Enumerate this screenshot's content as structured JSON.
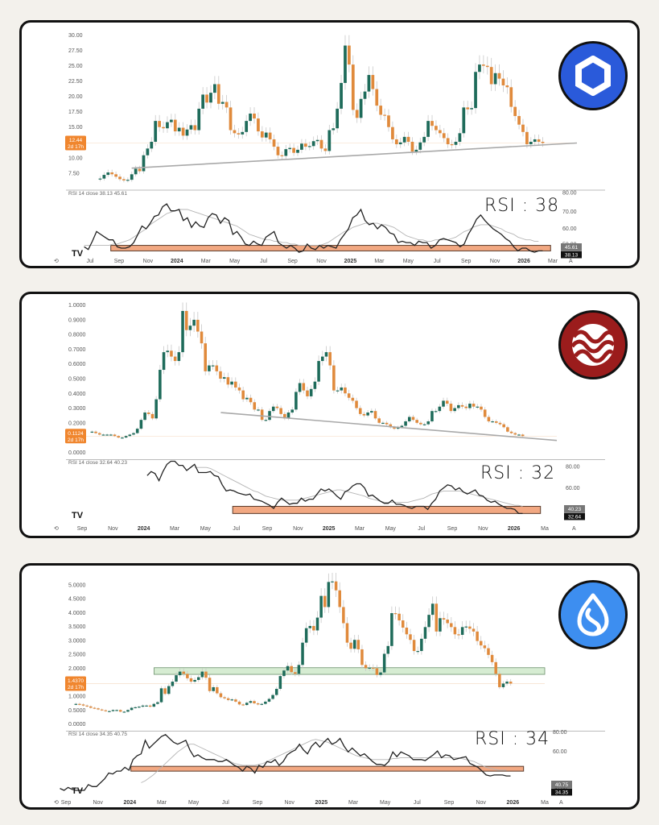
{
  "colors": {
    "background": "#f3f1ec",
    "panel": "#ffffff",
    "up_candle": "#1e6b5a",
    "down_candle": "#e08a3c",
    "trendline": "#a9a9a9",
    "rsi_line": "#222222",
    "rsi_ma_line": "#b5b5b5",
    "oversold_zone": "#f2a882",
    "support_zone": "#d6ecd2",
    "price_badge": "#f0862e"
  },
  "chart_data": [
    {
      "type": "candlestick",
      "asset_icon": "chainlink-hexagon-icon",
      "asset_icon_color": "#2a5ada",
      "title": "",
      "yticks": [
        "30.00",
        "27.50",
        "25.00",
        "22.50",
        "20.00",
        "17.50",
        "15.00",
        "10.00",
        "7.50"
      ],
      "ylim": [
        5.5,
        31
      ],
      "current_price_badge": {
        "price": "12.44",
        "countdown": "2d 17h"
      },
      "xticks": [
        "Jul",
        "Sep",
        "Nov",
        "2024",
        "Mar",
        "May",
        "Jul",
        "Sep",
        "Nov",
        "2025",
        "Mar",
        "May",
        "Jul",
        "Sep",
        "Nov",
        "2026",
        "Mar"
      ],
      "closes_approx": [
        6.6,
        7.2,
        7.6,
        7.3,
        6.9,
        6.5,
        6.3,
        6.4,
        7.3,
        8.2,
        7.8,
        10.4,
        11.5,
        12.6,
        16.0,
        15.0,
        14.8,
        15.8,
        16.2,
        14.3,
        14.9,
        13.6,
        14.6,
        15.3,
        14.5,
        18.0,
        20.3,
        19.0,
        20.6,
        22.0,
        18.8,
        19.1,
        18.2,
        14.5,
        14.0,
        13.8,
        14.2,
        16.0,
        17.2,
        16.4,
        14.3,
        13.3,
        14.1,
        13.0,
        11.8,
        10.4,
        10.3,
        11.4,
        11.6,
        10.8,
        11.3,
        12.3,
        11.8,
        11.9,
        12.7,
        12.9,
        11.5,
        11.1,
        14.5,
        14.8,
        18.0,
        22.2,
        28.3,
        25.2,
        17.8,
        16.5,
        19.6,
        20.8,
        23.5,
        21.2,
        18.5,
        17.0,
        16.9,
        15.0,
        13.0,
        12.2,
        12.5,
        13.4,
        12.6,
        11.0,
        11.3,
        12.5,
        13.4,
        16.0,
        15.2,
        14.5,
        14.0,
        13.2,
        12.2,
        12.1,
        12.6,
        14.0,
        18.2,
        17.9,
        18.1,
        24.0,
        25.2,
        25.0,
        24.8,
        22.0,
        23.8,
        22.9,
        21.8,
        21.5,
        18.3,
        16.8,
        15.4,
        14.2,
        12.2,
        12.6,
        13.0,
        12.6,
        12.4
      ],
      "trendline": {
        "from": [
          0.07,
          8.3
        ],
        "to": [
          1.0,
          12.4
        ]
      },
      "rsi": {
        "legend": {
          "label": "RSI 14 close",
          "value": "38.13",
          "ma": "45.61"
        },
        "yticks": [
          "80.00",
          "70.00",
          "60.00",
          "50.00"
        ],
        "ylim": [
          33,
          82
        ],
        "current_badges": {
          "ma": "45.61",
          "rsi": "38.13"
        },
        "values": [
          41,
          39,
          45,
          52,
          50,
          48,
          46,
          46,
          41,
          40,
          40,
          41,
          44,
          50,
          56,
          54,
          58,
          63,
          64,
          70,
          72,
          67,
          67,
          68,
          60,
          62,
          55,
          59,
          56,
          55,
          62,
          65,
          64,
          58,
          62,
          60,
          50,
          52,
          48,
          43,
          42,
          45,
          43,
          42,
          48,
          50,
          52,
          44,
          42,
          40,
          42,
          40,
          37,
          38,
          43,
          40,
          39,
          42,
          40,
          42,
          41,
          40,
          46,
          50,
          54,
          62,
          64,
          68,
          60,
          57,
          58,
          54,
          57,
          55,
          51,
          50,
          44,
          45,
          44,
          44,
          42,
          45,
          44,
          44,
          40,
          42,
          46,
          47,
          46,
          45,
          44,
          41,
          43,
          50,
          55,
          61,
          64,
          60,
          57,
          54,
          52,
          50,
          47,
          45,
          41,
          38,
          40,
          40,
          38,
          37,
          38,
          38
        ],
        "ma_values": [
          42,
          42,
          42,
          42,
          42,
          42,
          42,
          43,
          43,
          44,
          45,
          46,
          48,
          50,
          52,
          54,
          57,
          59,
          61,
          63,
          65,
          66,
          67,
          68,
          68,
          68,
          67,
          66,
          65,
          64,
          63,
          62,
          61,
          60,
          59,
          58,
          57,
          56,
          54,
          52,
          50,
          49,
          48,
          47,
          46,
          46,
          45,
          45,
          44,
          44,
          43,
          43,
          42,
          42,
          42,
          42,
          42,
          42,
          43,
          44,
          46,
          48,
          50,
          52,
          53,
          55,
          56,
          57,
          58,
          58,
          58,
          58,
          57,
          57,
          56,
          55,
          53,
          51,
          49,
          48,
          47,
          46,
          46,
          45,
          45,
          46,
          46,
          46,
          46,
          47,
          48,
          50,
          52,
          53,
          55,
          56,
          57,
          57,
          57,
          56,
          55,
          54,
          52,
          51,
          50,
          48,
          47,
          46,
          46,
          45,
          45
        ],
        "oversold_zone": {
          "from_x": 0.06,
          "to_x": 0.945,
          "y_top": 42,
          "y_bottom": 38
        },
        "annotation": "RSI : 38"
      }
    },
    {
      "type": "candlestick",
      "asset_icon": "sei-waves-icon",
      "asset_icon_color": "#9b1c1c",
      "title": "",
      "yticks": [
        "1.0000",
        "0.9000",
        "0.8000",
        "0.7000",
        "0.6000",
        "0.5000",
        "0.4000",
        "0.3000",
        "0.2000",
        "0.0000"
      ],
      "ylim": [
        -0.02,
        1.02
      ],
      "current_price_badge": {
        "price": "0.1124",
        "countdown": "2d 17h"
      },
      "xticks": [
        "Sep",
        "Nov",
        "2024",
        "Mar",
        "May",
        "Jul",
        "Sep",
        "Nov",
        "2025",
        "Mar",
        "May",
        "Jul",
        "Sep",
        "Nov",
        "2026",
        "Ma"
      ],
      "closes_approx": [
        0.14,
        0.13,
        0.12,
        0.12,
        0.12,
        0.12,
        0.11,
        0.1,
        0.1,
        0.11,
        0.12,
        0.13,
        0.16,
        0.22,
        0.27,
        0.26,
        0.23,
        0.36,
        0.56,
        0.68,
        0.69,
        0.65,
        0.62,
        0.68,
        0.96,
        0.83,
        0.86,
        0.9,
        0.82,
        0.74,
        0.55,
        0.59,
        0.59,
        0.55,
        0.5,
        0.51,
        0.46,
        0.48,
        0.44,
        0.42,
        0.36,
        0.37,
        0.34,
        0.29,
        0.29,
        0.22,
        0.22,
        0.28,
        0.31,
        0.3,
        0.26,
        0.23,
        0.27,
        0.29,
        0.41,
        0.47,
        0.42,
        0.38,
        0.43,
        0.48,
        0.62,
        0.65,
        0.68,
        0.59,
        0.42,
        0.42,
        0.44,
        0.4,
        0.37,
        0.35,
        0.3,
        0.26,
        0.25,
        0.27,
        0.28,
        0.23,
        0.2,
        0.2,
        0.19,
        0.17,
        0.16,
        0.17,
        0.18,
        0.21,
        0.24,
        0.22,
        0.2,
        0.19,
        0.19,
        0.21,
        0.28,
        0.28,
        0.31,
        0.35,
        0.33,
        0.28,
        0.3,
        0.32,
        0.31,
        0.3,
        0.33,
        0.31,
        0.31,
        0.29,
        0.24,
        0.21,
        0.21,
        0.2,
        0.19,
        0.17,
        0.14,
        0.13,
        0.12,
        0.12,
        0.11
      ],
      "trendline": {
        "from": [
          0.28,
          0.27
        ],
        "to": [
          1.0,
          0.08
        ]
      },
      "rsi": {
        "legend": {
          "label": "RSI 14 close",
          "value": "32.64",
          "ma": "40.23"
        },
        "yticks": [
          "80.00",
          "60.00"
        ],
        "ylim": [
          27,
          86
        ],
        "current_badges": {
          "ma": "40.23",
          "rsi": "32.64"
        },
        "start_index": 18,
        "values": [
          null,
          null,
          null,
          null,
          null,
          null,
          null,
          null,
          null,
          null,
          null,
          null,
          null,
          null,
          null,
          null,
          null,
          null,
          70,
          74,
          72,
          65,
          74,
          81,
          84,
          84,
          80,
          80,
          75,
          78,
          81,
          73,
          73,
          73,
          74,
          70,
          69,
          61,
          55,
          56,
          55,
          53,
          52,
          51,
          52,
          47,
          46,
          45,
          43,
          41,
          38,
          44,
          48,
          45,
          42,
          43,
          43,
          48,
          45,
          47,
          47,
          52,
          57,
          55,
          57,
          54,
          50,
          47,
          54,
          56,
          60,
          62,
          62,
          58,
          50,
          51,
          48,
          45,
          43,
          43,
          46,
          42,
          42,
          41,
          39,
          38,
          40,
          40,
          40,
          37,
          43,
          47,
          55,
          58,
          61,
          60,
          56,
          58,
          54,
          52,
          54,
          56,
          51,
          50,
          46,
          44,
          45,
          42,
          40,
          38,
          38,
          37,
          33,
          33
        ],
        "ma_values": [
          null,
          null,
          null,
          null,
          null,
          null,
          null,
          null,
          null,
          null,
          null,
          null,
          null,
          null,
          null,
          null,
          null,
          null,
          null,
          null,
          null,
          null,
          null,
          null,
          null,
          null,
          null,
          null,
          null,
          null,
          78,
          78,
          78,
          78,
          77,
          75,
          73,
          71,
          69,
          67,
          65,
          63,
          61,
          59,
          57,
          55,
          54,
          52,
          50,
          49,
          48,
          47,
          46,
          46,
          46,
          46,
          46,
          47,
          48,
          49,
          50,
          51,
          52,
          53,
          54,
          55,
          56,
          56,
          55,
          54,
          53,
          52,
          51,
          50,
          48,
          47,
          46,
          45,
          44,
          44,
          44,
          44,
          44,
          44,
          44,
          45,
          46,
          47,
          48,
          50,
          52,
          53,
          54,
          55,
          55,
          55,
          55,
          55,
          54,
          53,
          52,
          51,
          50,
          49,
          48,
          47,
          46,
          45,
          44,
          43,
          42,
          41,
          41,
          40
        ],
        "oversold_zone": {
          "from_x": 0.34,
          "to_x": 0.965,
          "y_top": 40,
          "y_bottom": 33
        },
        "annotation": "RSI : 32"
      }
    },
    {
      "type": "candlestick",
      "asset_icon": "sui-droplet-icon",
      "asset_icon_color": "#3d8ef0",
      "title": "",
      "yticks": [
        "5.0000",
        "4.5000",
        "4.0000",
        "3.5000",
        "3.0000",
        "2.5000",
        "2.0000",
        "1.0000",
        "0.5000",
        "0.0000"
      ],
      "ylim": [
        -0.1,
        5.4
      ],
      "current_price_badge": {
        "price": "1.4370",
        "countdown": "2d 17h"
      },
      "support_zone": {
        "low": 1.78,
        "high": 2.02,
        "from_x": 0.17,
        "to_x": 1.0
      },
      "xticks": [
        "Sep",
        "Nov",
        "2024",
        "Mar",
        "May",
        "Jul",
        "Sep",
        "Nov",
        "2025",
        "Mar",
        "May",
        "Jul",
        "Sep",
        "Nov",
        "2026",
        "Ma"
      ],
      "closes_approx": [
        0.72,
        0.7,
        0.66,
        0.63,
        0.58,
        0.56,
        0.52,
        0.49,
        0.46,
        0.46,
        0.5,
        0.5,
        0.44,
        0.44,
        0.5,
        0.58,
        0.6,
        0.62,
        0.66,
        0.66,
        0.62,
        0.72,
        0.78,
        1.28,
        1.08,
        1.36,
        1.52,
        1.75,
        1.88,
        1.8,
        1.64,
        1.52,
        1.58,
        1.68,
        1.88,
        1.66,
        1.18,
        1.32,
        1.1,
        0.96,
        0.92,
        0.86,
        0.88,
        0.8,
        0.7,
        0.68,
        0.76,
        0.82,
        0.74,
        0.7,
        0.72,
        0.8,
        0.9,
        1.04,
        1.26,
        1.72,
        1.92,
        2.08,
        1.86,
        1.8,
        2.12,
        2.92,
        3.44,
        3.52,
        3.36,
        3.82,
        4.6,
        4.2,
        5.1,
        5.12,
        4.8,
        4.2,
        3.62,
        2.92,
        2.7,
        3.02,
        2.68,
        2.12,
        2.0,
        2.02,
        2.0,
        1.76,
        1.85,
        2.52,
        2.8,
        3.98,
        3.96,
        3.72,
        3.46,
        3.22,
        3.02,
        2.62,
        2.62,
        3.06,
        3.48,
        3.92,
        4.32,
        3.32,
        3.8,
        3.75,
        3.62,
        3.48,
        3.22,
        3.2,
        3.48,
        3.5,
        3.42,
        3.32,
        2.98,
        2.82,
        2.72,
        2.48,
        2.22,
        1.8,
        1.32,
        1.45,
        1.52,
        1.45
      ],
      "rsi": {
        "legend": {
          "label": "RSI 14 close",
          "value": "34.35",
          "ma": "40.75"
        },
        "yticks": [
          "80.00",
          "60.00",
          "20.00"
        ],
        "ylim": [
          15,
          82
        ],
        "current_badges": {
          "ma": "40.75",
          "rsi": "34.35"
        },
        "values": [
          22,
          20,
          23,
          21,
          20,
          20,
          20,
          26,
          24,
          24,
          28,
          32,
          38,
          37,
          40,
          40,
          44,
          41,
          52,
          56,
          58,
          72,
          64,
          68,
          72,
          76,
          78,
          74,
          70,
          68,
          70,
          72,
          62,
          55,
          57,
          54,
          52,
          52,
          52,
          50,
          50,
          52,
          49,
          46,
          44,
          40,
          45,
          43,
          38,
          46,
          44,
          50,
          49,
          52,
          46,
          50,
          57,
          60,
          62,
          68,
          62,
          58,
          66,
          70,
          65,
          70,
          74,
          68,
          70,
          74,
          66,
          60,
          64,
          60,
          56,
          58,
          54,
          50,
          47,
          47,
          46,
          50,
          60,
          55,
          60,
          58,
          56,
          52,
          52,
          52,
          51,
          54,
          57,
          61,
          54,
          57,
          56,
          52,
          53,
          54,
          55,
          48,
          46,
          44,
          40,
          36,
          35,
          36,
          36,
          36,
          35,
          35
        ],
        "ma_values": [
          null,
          null,
          null,
          null,
          null,
          null,
          null,
          null,
          null,
          null,
          null,
          null,
          null,
          null,
          null,
          null,
          null,
          null,
          null,
          null,
          28,
          30,
          33,
          36,
          40,
          44,
          48,
          52,
          56,
          60,
          63,
          66,
          68,
          68,
          66,
          64,
          62,
          60,
          58,
          56,
          54,
          52,
          50,
          48,
          47,
          46,
          46,
          46,
          46,
          47,
          48,
          50,
          52,
          54,
          56,
          58,
          60,
          62,
          64,
          66,
          68,
          70,
          72,
          73,
          72,
          71,
          70,
          68,
          66,
          64,
          62,
          60,
          58,
          56,
          55,
          54,
          53,
          52,
          52,
          52,
          52,
          52,
          53,
          53,
          54,
          54,
          54,
          54,
          54,
          54,
          54,
          54,
          54,
          54,
          54,
          54,
          54,
          54,
          54,
          53,
          52,
          51,
          50,
          48,
          46,
          44,
          43,
          42,
          41,
          41,
          41
        ],
        "oversold_zone": {
          "from_x": 0.155,
          "to_x": 0.955,
          "y_top": 45,
          "y_bottom": 40
        },
        "annotation": "RSI : 34"
      }
    }
  ],
  "panels": [
    {
      "rsi_note": "RSI : 38"
    },
    {
      "rsi_note": "RSI : 32"
    },
    {
      "rsi_note": "RSI : 34"
    }
  ]
}
